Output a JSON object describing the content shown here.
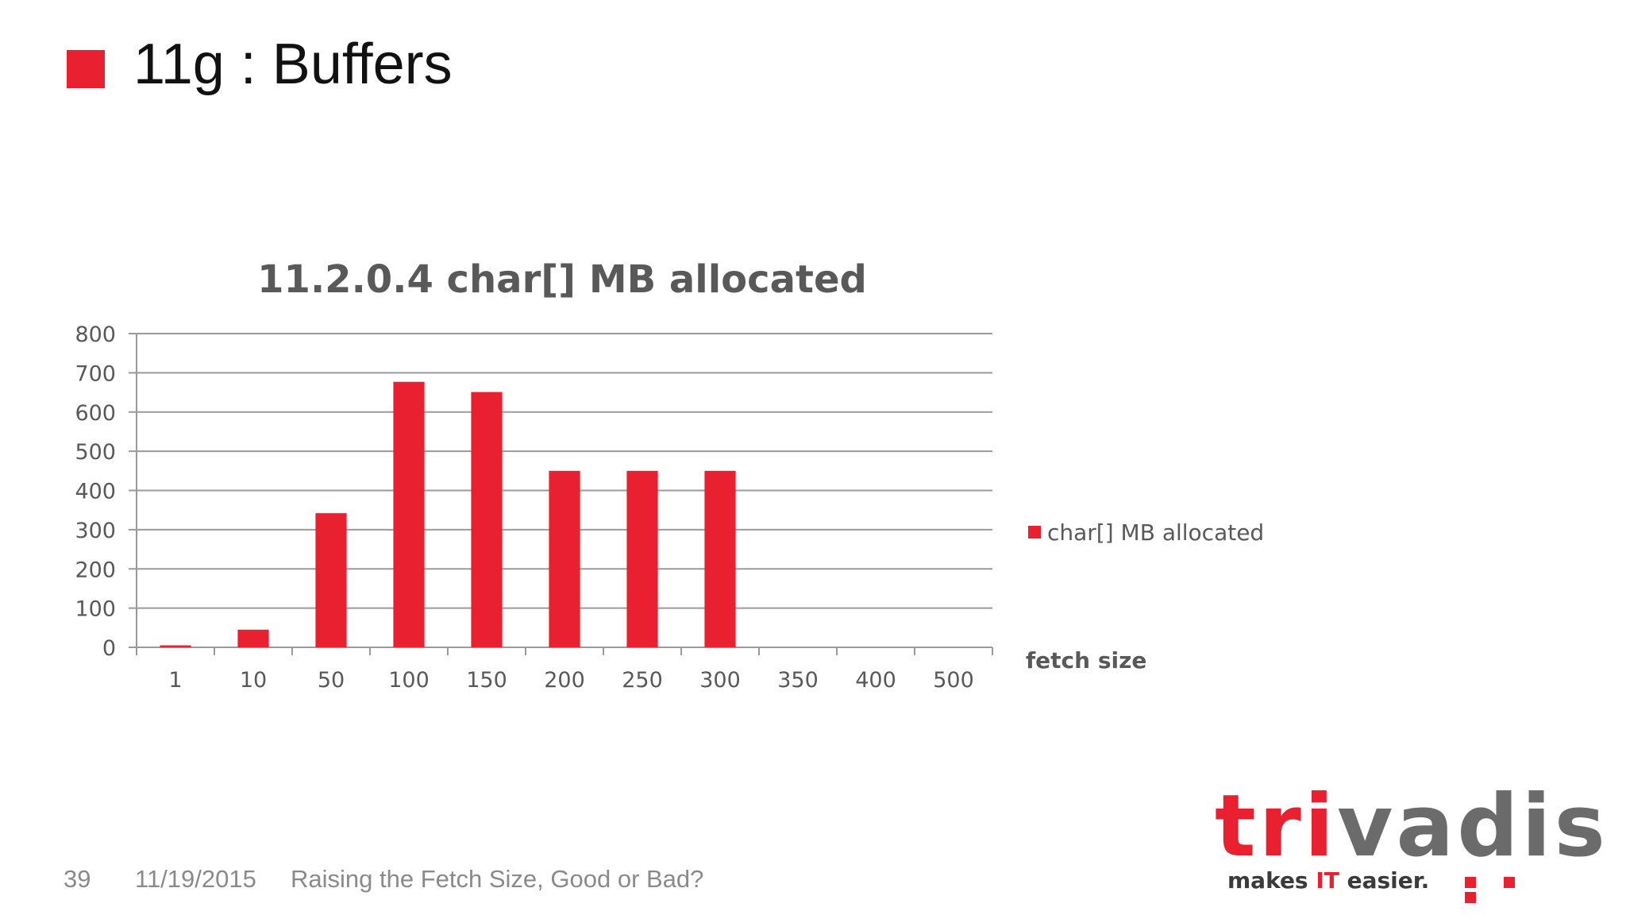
{
  "slide": {
    "title": "11g : Buffers",
    "accent_color": "#e8202f"
  },
  "footer": {
    "page_number": "39",
    "date": "11/19/2015",
    "presentation_title": "Raising the Fetch Size, Good or Bad?"
  },
  "logo": {
    "letters": [
      "t",
      "r",
      "i",
      "v",
      "a",
      "d",
      "i",
      "s"
    ],
    "tagline_pre": "makes ",
    "tagline_it": "IT",
    "tagline_post": " easier."
  },
  "chart_data": {
    "type": "bar",
    "title": "11.2.0.4 char[] MB allocated",
    "xlabel": "fetch size",
    "ylabel": "",
    "categories": [
      "1",
      "10",
      "50",
      "100",
      "150",
      "200",
      "250",
      "300",
      "350",
      "400",
      "500"
    ],
    "series": [
      {
        "name": "char[] MB allocated",
        "color": "#e8202f",
        "values": [
          5,
          45,
          342,
          677,
          651,
          450,
          450,
          450,
          0,
          0,
          0
        ]
      }
    ],
    "ylim": [
      0,
      800
    ],
    "yticks": [
      0,
      100,
      200,
      300,
      400,
      500,
      600,
      700,
      800
    ],
    "grid": true,
    "legend_position": "right"
  }
}
